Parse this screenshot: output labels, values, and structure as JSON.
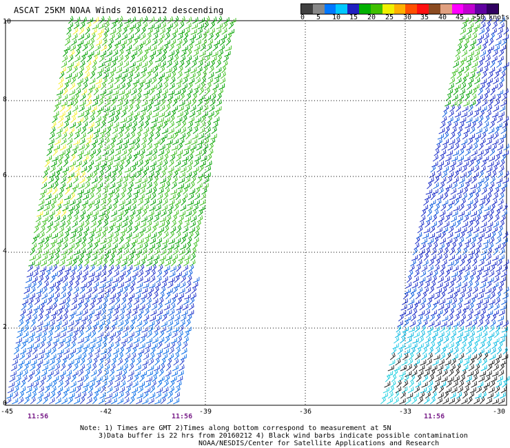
{
  "title": "ASCAT 25KM NOAA Winds 20160212 descending",
  "legend": {
    "colors": [
      "#404040",
      "#888888",
      "#0078ff",
      "#00c8ff",
      "#2020c0",
      "#00b000",
      "#40c000",
      "#f0f000",
      "#ffb000",
      "#ff5000",
      "#ff1010",
      "#8a4a20",
      "#e0a080",
      "#ff00ff",
      "#c000d0",
      "#6000a0",
      "#300060"
    ],
    "labels": [
      "0",
      "5",
      "10",
      "15",
      "20",
      "25",
      "30",
      "35",
      "40",
      "45",
      ">50 knots"
    ]
  },
  "axes": {
    "y_labels": [
      "10",
      "8",
      "6",
      "4",
      "2",
      "0"
    ],
    "x_labels": [
      "-45",
      "-42",
      "-39",
      "-36",
      "-33",
      "-30"
    ]
  },
  "times": [
    "11:56",
    "11:56",
    "11:56"
  ],
  "notes": {
    "line1": "Note: 1) Times are GMT 2)Times along bottom correspond to measurement at 5N",
    "line2": "3)Data buffer is 22 hrs from 20160212 4) Black wind barbs indicate possible contamination",
    "line3": "NOAA/NESDIS/Center for Satellite Applications and Research"
  }
}
